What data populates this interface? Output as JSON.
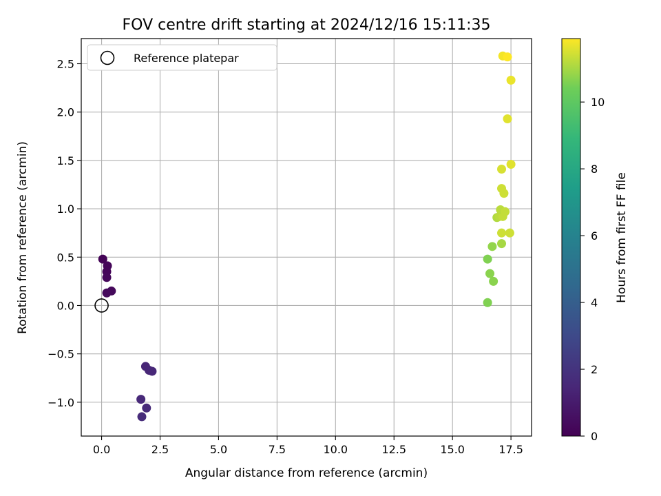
{
  "chart_data": {
    "type": "scatter",
    "title": "FOV centre drift starting at 2024/12/16 15:11:35",
    "xlabel": "Angular distance from reference (arcmin)",
    "ylabel": "Rotation from reference (arcmin)",
    "xlim": [
      -0.87,
      18.38
    ],
    "ylim": [
      -1.35,
      2.76
    ],
    "xticks": [
      0.0,
      2.5,
      5.0,
      7.5,
      10.0,
      12.5,
      15.0,
      17.5
    ],
    "xtick_labels": [
      "0.0",
      "2.5",
      "5.0",
      "7.5",
      "10.0",
      "12.5",
      "15.0",
      "17.5"
    ],
    "yticks": [
      -1.0,
      -0.5,
      0.0,
      0.5,
      1.0,
      1.5,
      2.0,
      2.5
    ],
    "ytick_labels": [
      "−1.0",
      "−0.5",
      "0.0",
      "0.5",
      "1.0",
      "1.5",
      "2.0",
      "2.5"
    ],
    "grid": true,
    "legend": {
      "position": "top-left",
      "entries": [
        "Reference platepar"
      ]
    },
    "reference_point": {
      "x": 0.0,
      "y": 0.0,
      "marker": "open-circle"
    },
    "colorbar": {
      "label": "Hours from first FF file",
      "colormap": "viridis",
      "range": [
        0,
        11.9
      ],
      "ticks": [
        0,
        2,
        4,
        6,
        8,
        10
      ],
      "tick_labels": [
        "0",
        "2",
        "4",
        "6",
        "8",
        "10"
      ]
    },
    "points": [
      {
        "x": 0.05,
        "y": 0.48,
        "hours": 0.1
      },
      {
        "x": 0.25,
        "y": 0.41,
        "hours": 0.2
      },
      {
        "x": 0.22,
        "y": 0.35,
        "hours": 0.2
      },
      {
        "x": 0.22,
        "y": 0.29,
        "hours": 0.25
      },
      {
        "x": 0.42,
        "y": 0.15,
        "hours": 0.3
      },
      {
        "x": 0.22,
        "y": 0.13,
        "hours": 0.35
      },
      {
        "x": 1.88,
        "y": -0.63,
        "hours": 1.4
      },
      {
        "x": 2.03,
        "y": -0.67,
        "hours": 1.45
      },
      {
        "x": 2.16,
        "y": -0.68,
        "hours": 1.5
      },
      {
        "x": 1.68,
        "y": -0.97,
        "hours": 1.55
      },
      {
        "x": 1.92,
        "y": -1.06,
        "hours": 1.6
      },
      {
        "x": 1.72,
        "y": -1.15,
        "hours": 1.65
      },
      {
        "x": 16.5,
        "y": 0.03,
        "hours": 10.6
      },
      {
        "x": 16.5,
        "y": 0.48,
        "hours": 10.6
      },
      {
        "x": 16.6,
        "y": 0.33,
        "hours": 10.7
      },
      {
        "x": 16.75,
        "y": 0.25,
        "hours": 10.7
      },
      {
        "x": 16.7,
        "y": 0.61,
        "hours": 10.8
      },
      {
        "x": 17.1,
        "y": 0.64,
        "hours": 11.0
      },
      {
        "x": 16.9,
        "y": 0.91,
        "hours": 11.1
      },
      {
        "x": 17.0,
        "y": 0.92,
        "hours": 11.2
      },
      {
        "x": 17.15,
        "y": 0.92,
        "hours": 11.3
      },
      {
        "x": 17.05,
        "y": 0.99,
        "hours": 11.2
      },
      {
        "x": 17.25,
        "y": 0.97,
        "hours": 11.3
      },
      {
        "x": 17.1,
        "y": 0.75,
        "hours": 11.4
      },
      {
        "x": 17.45,
        "y": 0.75,
        "hours": 11.4
      },
      {
        "x": 17.1,
        "y": 1.21,
        "hours": 11.4
      },
      {
        "x": 17.2,
        "y": 1.16,
        "hours": 11.4
      },
      {
        "x": 17.1,
        "y": 1.41,
        "hours": 11.5
      },
      {
        "x": 17.5,
        "y": 1.46,
        "hours": 11.6
      },
      {
        "x": 17.35,
        "y": 1.93,
        "hours": 11.6
      },
      {
        "x": 17.5,
        "y": 2.33,
        "hours": 11.7
      },
      {
        "x": 17.15,
        "y": 2.58,
        "hours": 11.8
      },
      {
        "x": 17.35,
        "y": 2.57,
        "hours": 11.9
      }
    ]
  }
}
